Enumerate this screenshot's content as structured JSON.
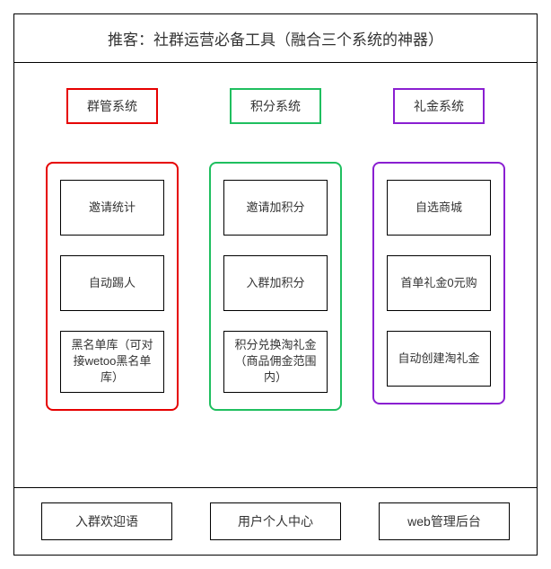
{
  "title": "推客：社群运营必备工具（融合三个系统的神器）",
  "columns": [
    {
      "header": "群管系统",
      "color": "#e60000",
      "items": [
        "邀请统计",
        "自动踢人",
        "黑名单库（可对接wetoo黑名单库）"
      ]
    },
    {
      "header": "积分系统",
      "color": "#1fbf5f",
      "items": [
        "邀请加积分",
        "入群加积分",
        "积分兑换淘礼金（商品佣金范围内）"
      ]
    },
    {
      "header": "礼金系统",
      "color": "#8a1fd1",
      "items": [
        "自选商城",
        "首单礼金0元购",
        "自动创建淘礼金"
      ]
    }
  ],
  "footer": [
    "入群欢迎语",
    "用户个人中心",
    "web管理后台"
  ],
  "box_border_color": "#000000",
  "background_color": "#ffffff",
  "text_color": "#333333"
}
